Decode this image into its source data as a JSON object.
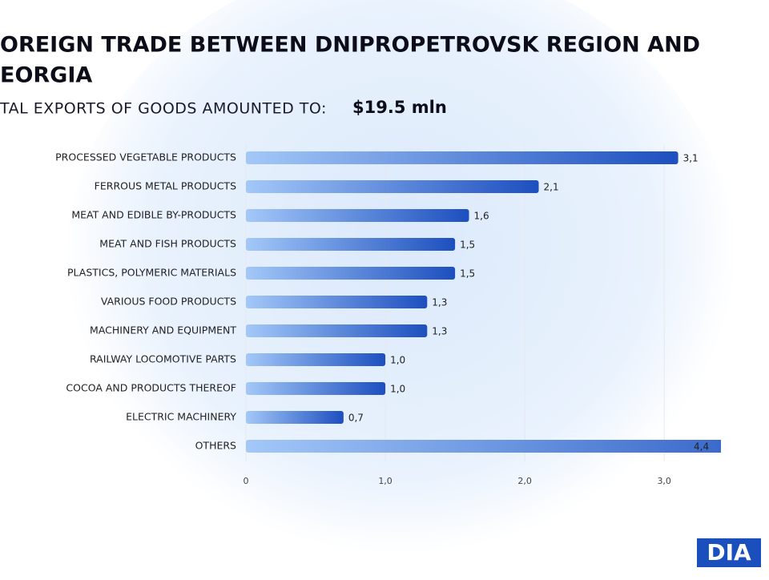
{
  "chart_data": {
    "type": "hbar",
    "title": [
      "OREIGN TRADE BETWEEN DNIPROPETROVSK REGION AND",
      "EORGIA"
    ],
    "subtitle": "TAL EXPORTS OF GOODS AMOUNTED TO:",
    "total": "$19.5 mln",
    "categories": [
      "PROCESSED VEGETABLE PRODUCTS",
      "FERROUS METAL PRODUCTS",
      "MEAT AND EDIBLE BY-PRODUCTS",
      "MEAT AND FISH PRODUCTS",
      "PLASTICS, POLYMERIC MATERIALS",
      "VARIOUS FOOD PRODUCTS",
      "MACHINERY AND EQUIPMENT",
      "RAILWAY LOCOMOTIVE PARTS",
      "COCOA AND PRODUCTS THEREOF",
      "ELECTRIC MACHINERY",
      "OTHERS"
    ],
    "values": [
      3.1,
      2.1,
      1.6,
      1.5,
      1.5,
      1.3,
      1.3,
      1.0,
      1.0,
      0.7,
      4.4
    ],
    "value_labels": [
      "3,1",
      "2,1",
      "1,6",
      "1,5",
      "1,5",
      "1,3",
      "1,3",
      "1,0",
      "1,0",
      "0,7",
      "4,4"
    ],
    "xlim": [
      0,
      3.2
    ],
    "xticks": [
      0,
      {
        "value": 1,
        "label": "1,0"
      },
      {
        "value": 2,
        "label": "2,0"
      },
      {
        "value": 3,
        "label": "3,0"
      }
    ],
    "grid": true
  },
  "logo": "DIA"
}
